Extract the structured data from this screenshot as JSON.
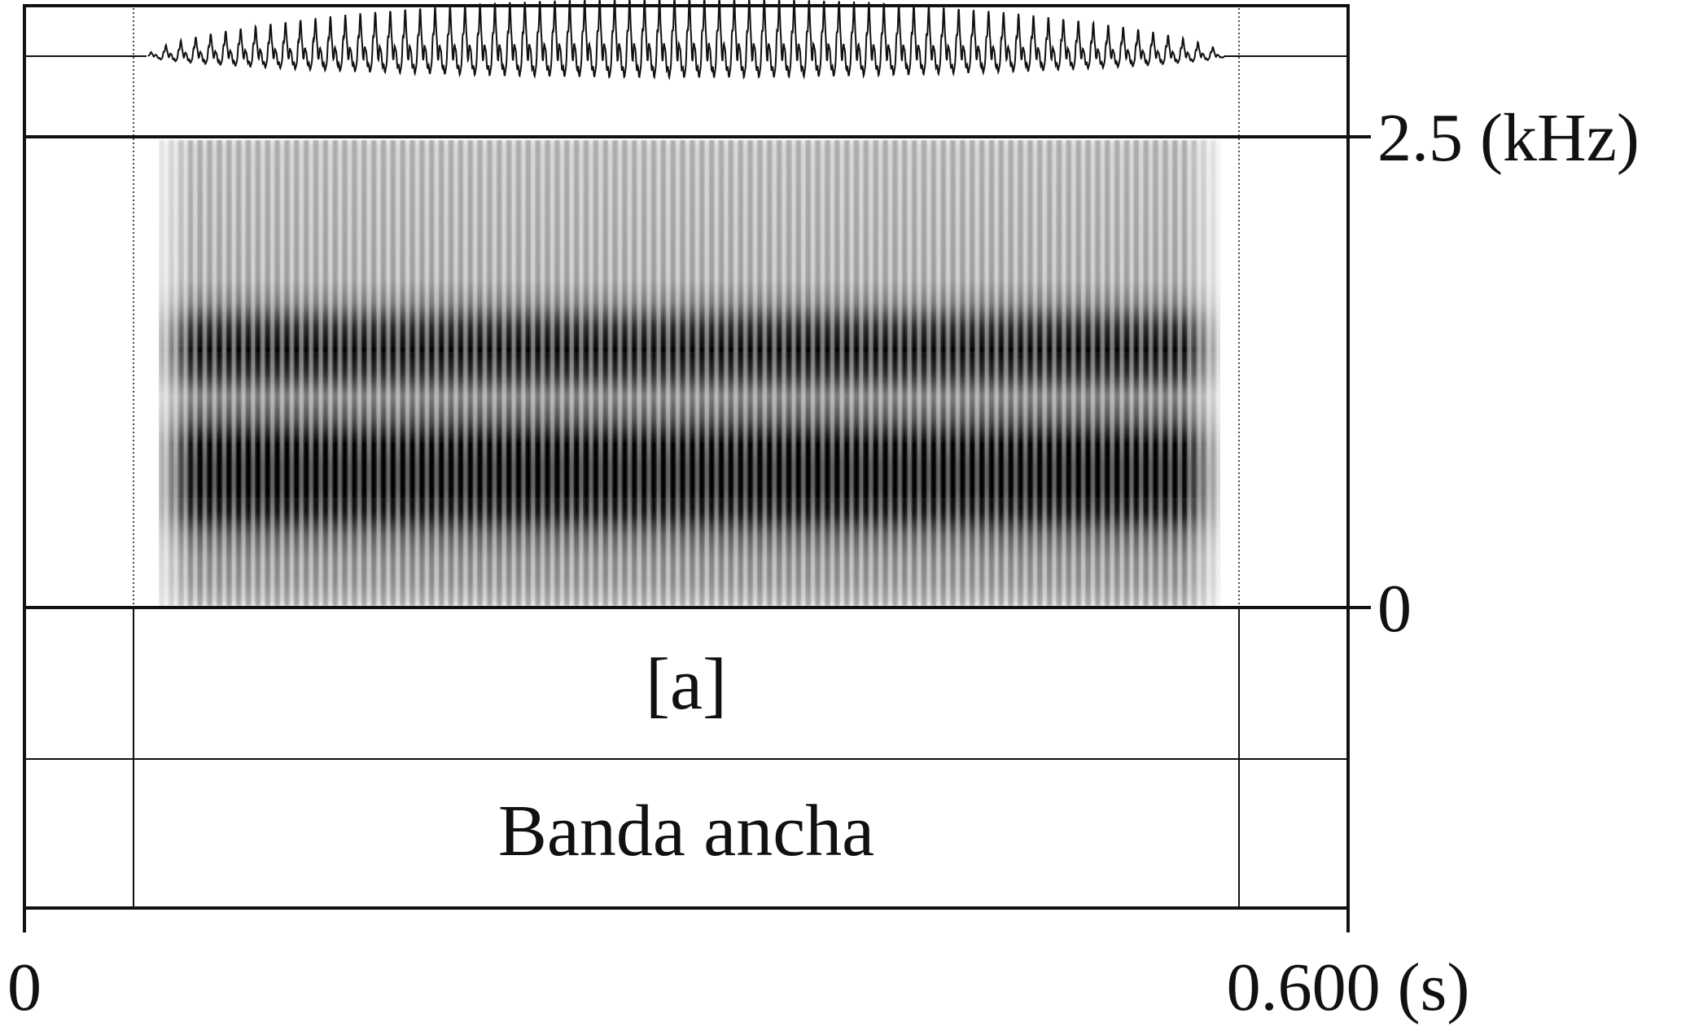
{
  "figure": {
    "type": "praat-waveform-spectrogram",
    "time_axis": {
      "start_label": "0",
      "end_label": "0.600 (s)",
      "start": 0,
      "end": 0.6
    },
    "frequency_axis": {
      "top_label": "2.5 (kHz)",
      "bottom_label": "0",
      "min": 0,
      "max": 2.5
    },
    "interval": {
      "start": 0.05,
      "end": 0.55
    },
    "tiers": [
      {
        "name": "segment-tier",
        "label": "[a]"
      },
      {
        "name": "description-tier",
        "label": "Banda ancha"
      }
    ],
    "colors": {
      "ink": "#111111",
      "background": "#ffffff"
    }
  }
}
